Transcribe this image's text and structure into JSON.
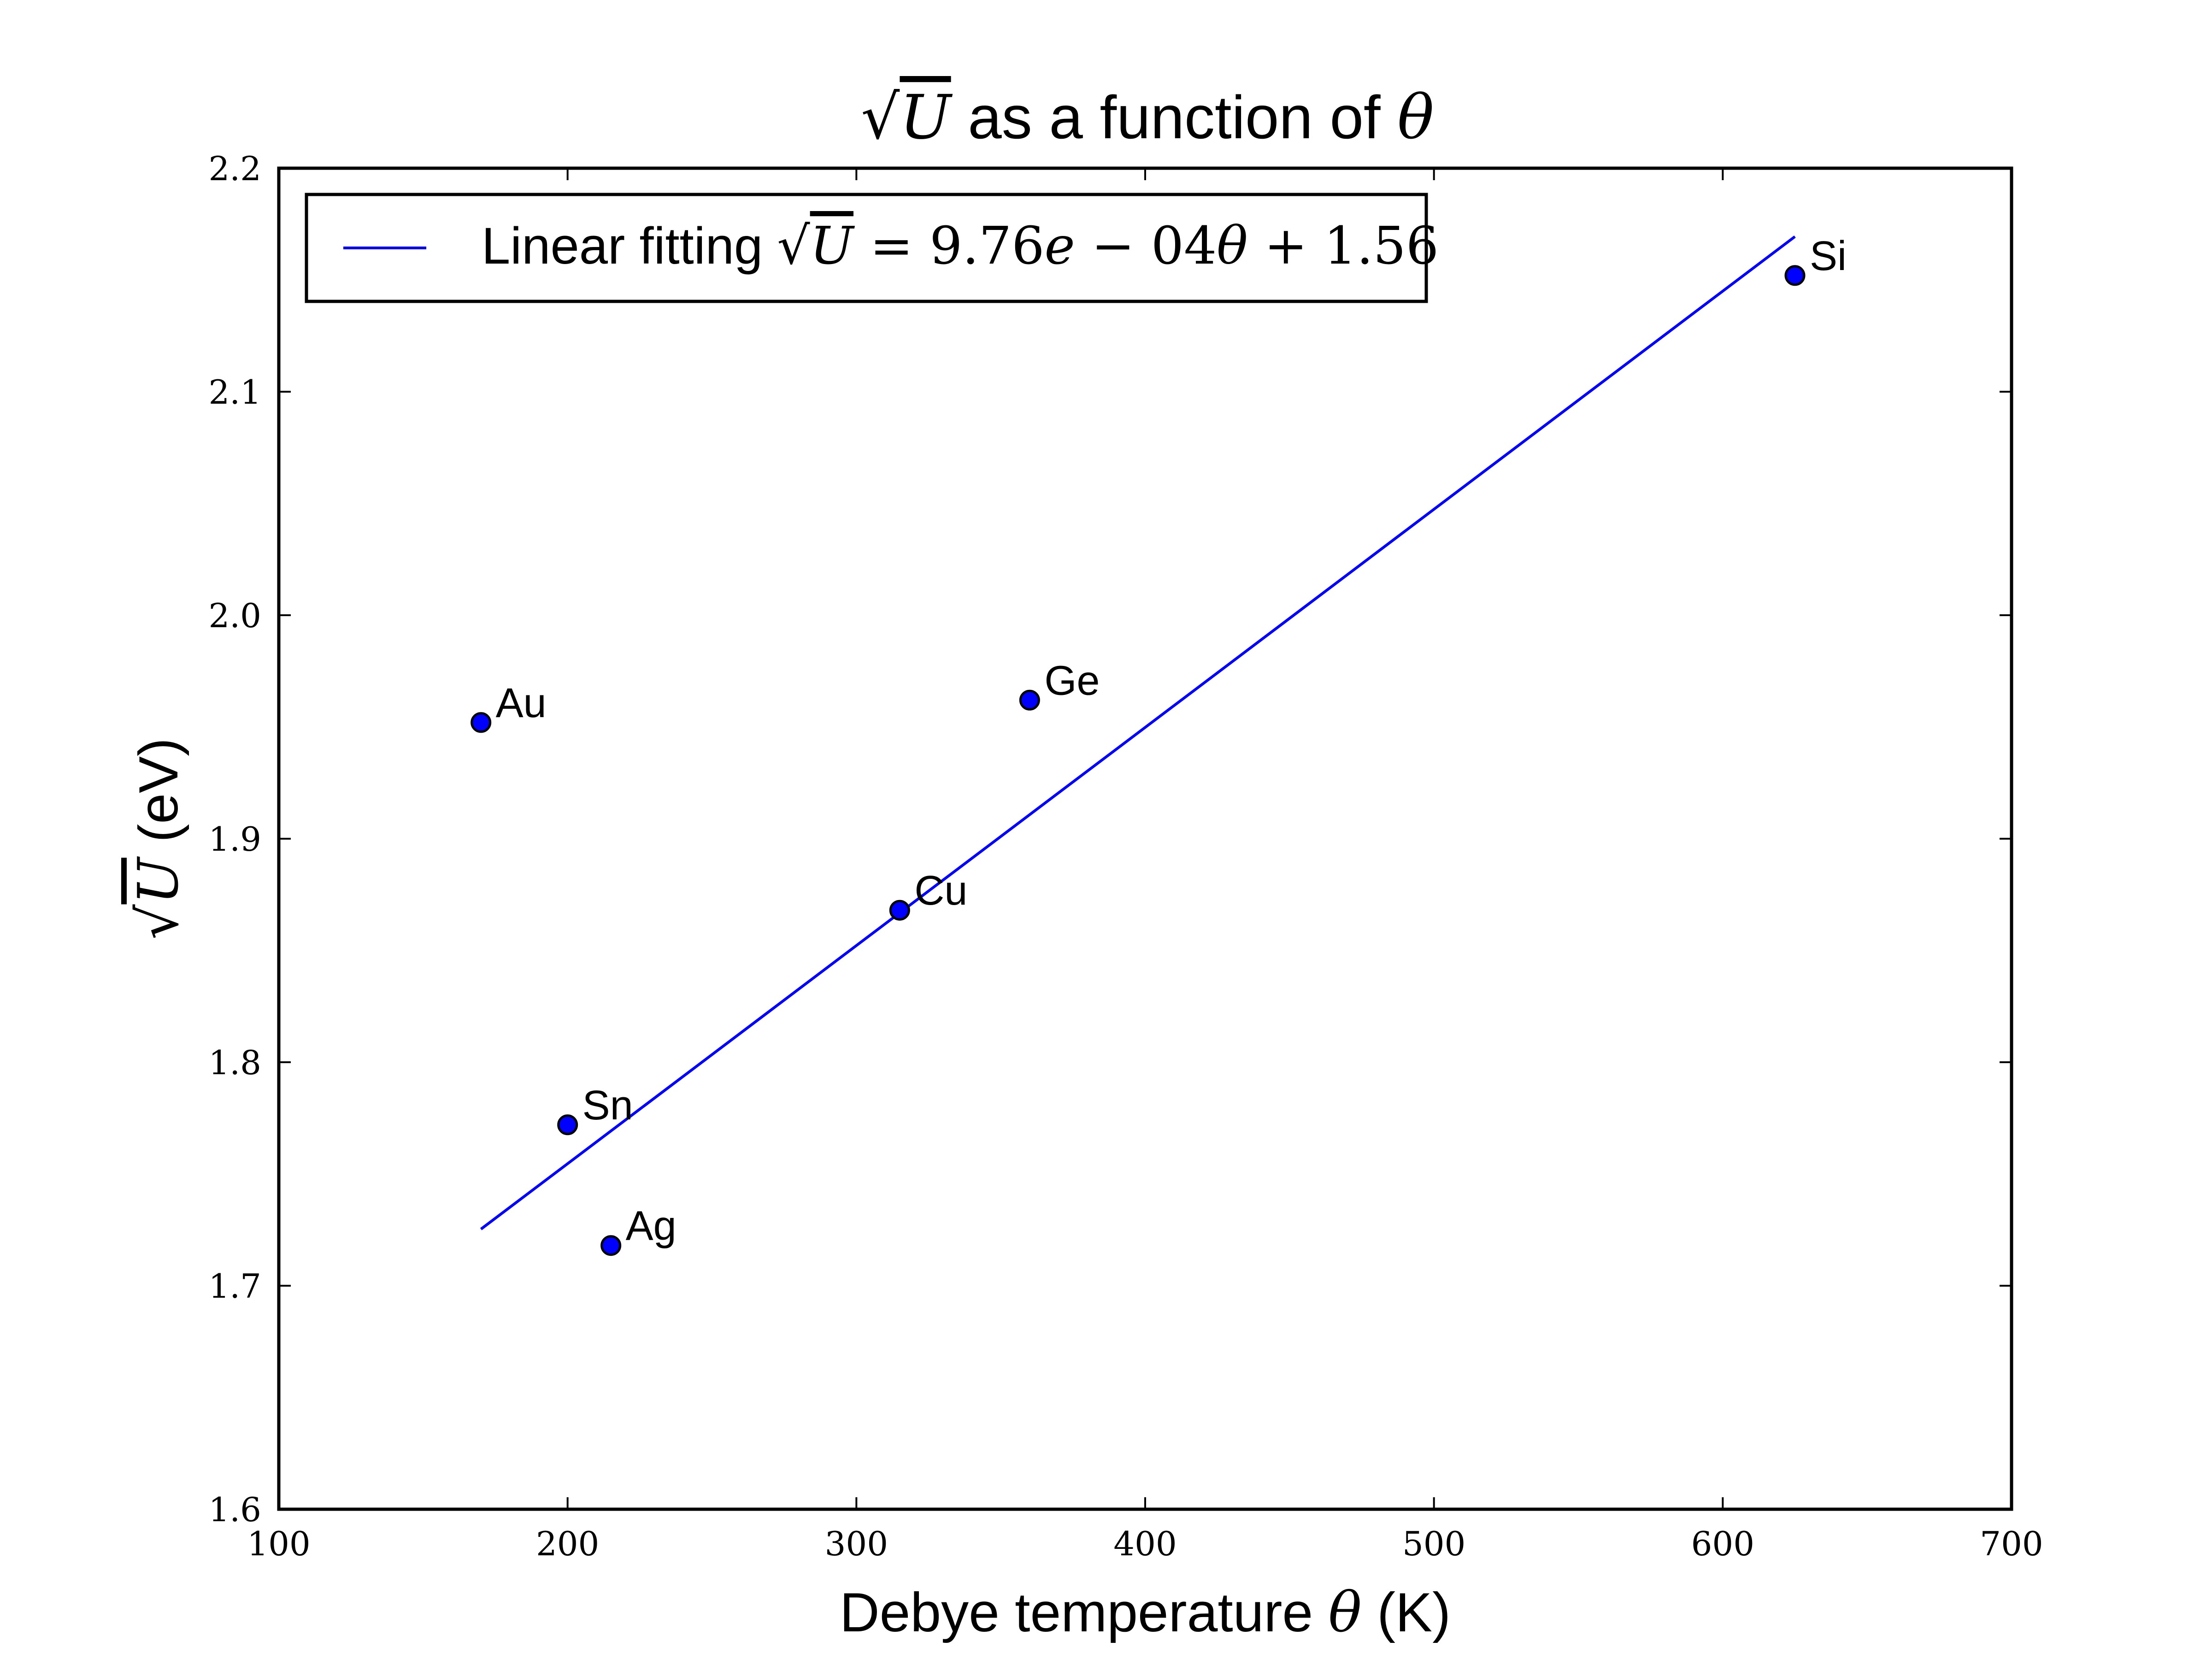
{
  "chart_data": {
    "type": "scatter",
    "title_parts": [
      "√",
      "U",
      " as a function of ",
      "θ"
    ],
    "xlabel_parts": [
      "Debye temperature ",
      "θ",
      " (K)"
    ],
    "ylabel_parts": [
      "√",
      "U",
      " (eV)"
    ],
    "xlim": [
      100,
      700
    ],
    "ylim": [
      1.6,
      2.2
    ],
    "xticks": [
      "100",
      "200",
      "300",
      "400",
      "500",
      "600",
      "700"
    ],
    "yticks": [
      "1.6",
      "1.7",
      "1.8",
      "1.9",
      "2.0",
      "2.1",
      "2.2"
    ],
    "points": [
      {
        "label": "Au",
        "x": 170,
        "y": 1.952
      },
      {
        "label": "Sn",
        "x": 200,
        "y": 1.772
      },
      {
        "label": "Ag",
        "x": 215,
        "y": 1.718
      },
      {
        "label": "Cu",
        "x": 315,
        "y": 1.868
      },
      {
        "label": "Ge",
        "x": 360,
        "y": 1.962
      },
      {
        "label": "Si",
        "x": 625,
        "y": 2.152
      }
    ],
    "fit_line": {
      "x": [
        170,
        625
      ],
      "slope": 0.000976,
      "intercept": 1.5594
    },
    "legend": {
      "position": "top-left",
      "parts": [
        "Linear fitting ",
        "√",
        "U",
        " = 9.76",
        "e",
        " − 04",
        "θ",
        " + 1.56"
      ]
    },
    "colors": {
      "points": "#0000ff",
      "line": "#0000ff",
      "axes": "#000000"
    },
    "grid": false
  }
}
